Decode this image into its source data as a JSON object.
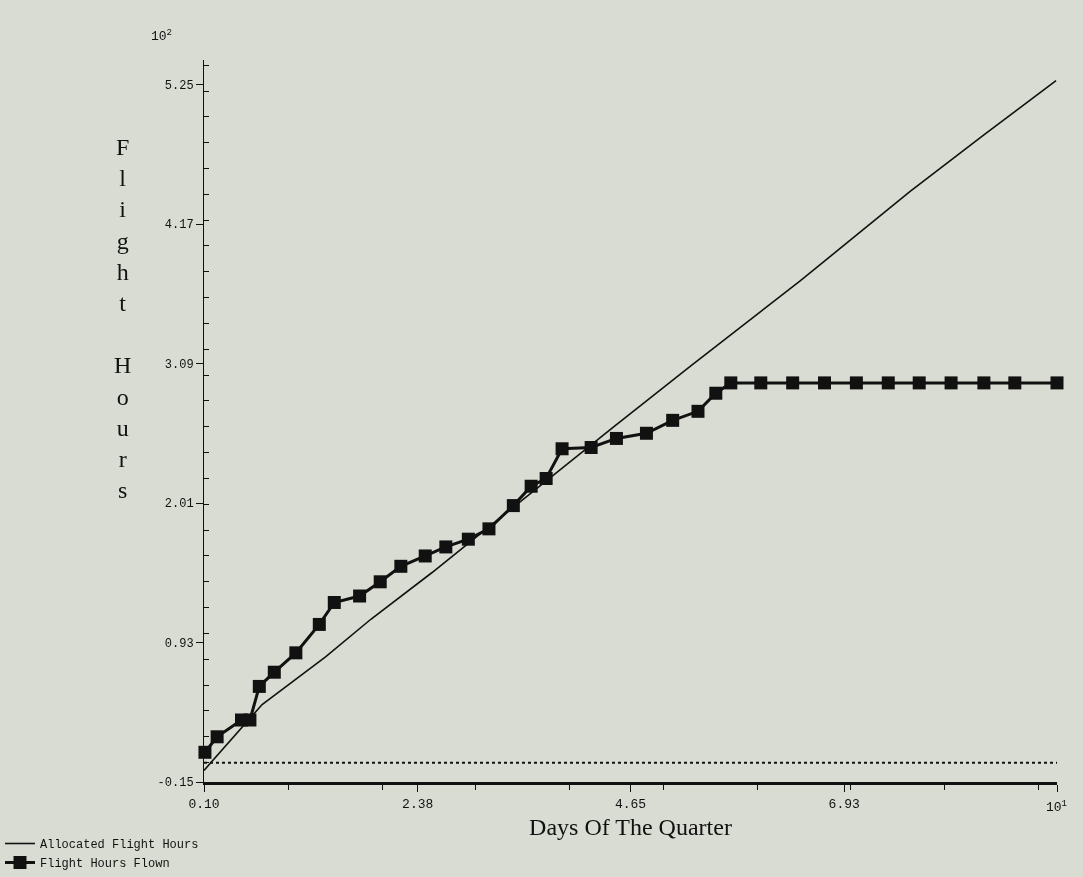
{
  "chart_data": {
    "type": "line",
    "xlabel": "Days Of The Quarter",
    "ylabel": "Flight Hours",
    "annotations": [
      "10$^{2}$",
      "10$^{1}$"
    ],
    "xlim": [
      0.1,
      9.2
    ],
    "xticks": [
      {
        "value": 0.1,
        "label": "0.10"
      },
      {
        "value": 2.38,
        "label": "2.38"
      },
      {
        "value": 4.65,
        "label": "4.65"
      },
      {
        "value": 6.93,
        "label": "6.93"
      },
      {
        "value": 9.2,
        "label": null
      }
    ],
    "ylim": [
      -0.15,
      5.44
    ],
    "yticks": [
      -0.15,
      0.93,
      2.01,
      3.09,
      4.17,
      5.25
    ],
    "grid": false,
    "legend": "bottom left",
    "ref_lines": [
      {
        "axis": "y",
        "value": 0,
        "line_style": "dotted",
        "color": "#111111"
      }
    ],
    "series": [
      {
        "name": "Allocated Flight Hours",
        "color": "#111111",
        "marker": "none",
        "line_style": "solid",
        "x": [
          0.1,
          0.72,
          1.4,
          1.88,
          2.53,
          3.01,
          4.47,
          5.29,
          6.46,
          7.63,
          8.42,
          9.19
        ],
        "values": [
          -0.06,
          0.45,
          0.82,
          1.11,
          1.47,
          1.75,
          2.6,
          3.07,
          3.73,
          4.42,
          4.86,
          5.28
        ]
      },
      {
        "name": "Flight Hours Flown",
        "color": "#111111",
        "marker": "square",
        "line_style": "solid",
        "x": [
          0.11,
          0.24,
          0.5,
          0.59,
          0.69,
          0.85,
          1.08,
          1.33,
          1.49,
          1.76,
          1.98,
          2.2,
          2.46,
          2.68,
          2.92,
          3.14,
          3.4,
          3.59,
          3.75,
          3.92,
          4.23,
          4.5,
          4.82,
          5.1,
          5.37,
          5.56,
          5.72,
          6.04,
          6.38,
          6.72,
          7.06,
          7.4,
          7.73,
          8.07,
          8.42,
          8.75,
          9.2
        ],
        "values": [
          0.08,
          0.2,
          0.33,
          0.33,
          0.59,
          0.7,
          0.85,
          1.07,
          1.24,
          1.29,
          1.4,
          1.52,
          1.6,
          1.67,
          1.73,
          1.81,
          1.99,
          2.14,
          2.2,
          2.43,
          2.44,
          2.51,
          2.55,
          2.65,
          2.72,
          2.86,
          2.94,
          2.94,
          2.94,
          2.94,
          2.94,
          2.94,
          2.94,
          2.94,
          2.94,
          2.94,
          2.94
        ]
      }
    ]
  }
}
